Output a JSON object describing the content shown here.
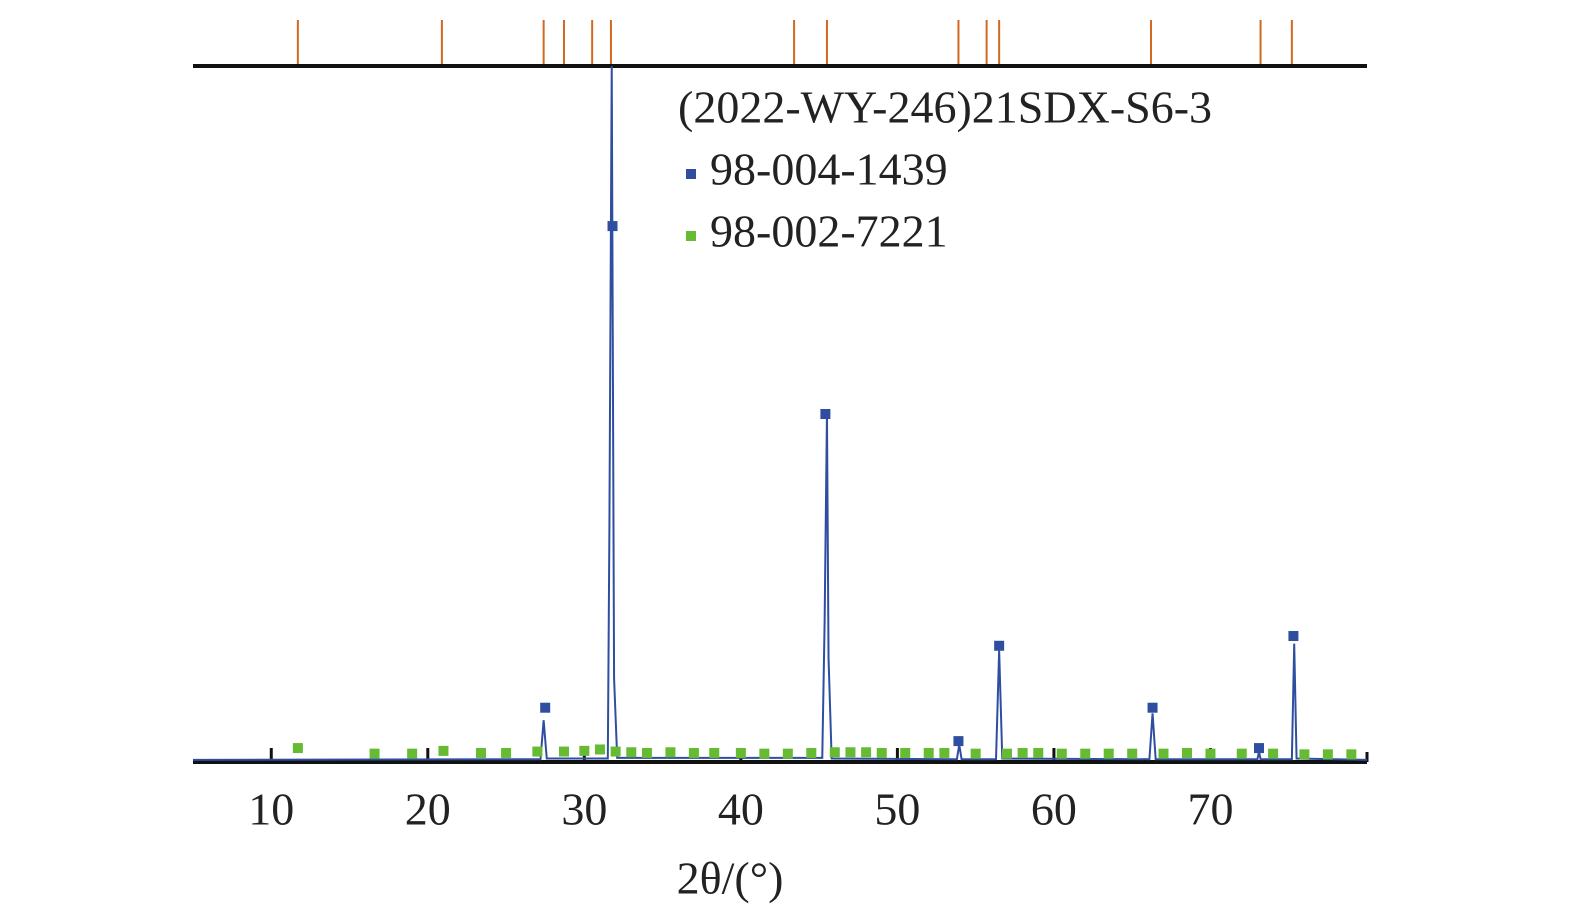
{
  "chart_data": {
    "type": "xrd",
    "x_label": "2θ/(°)",
    "xlim": [
      5,
      80
    ],
    "xticks": [
      10,
      20,
      30,
      40,
      50,
      60,
      70
    ],
    "ylim": [
      0,
      100
    ],
    "peak_markers": {
      "color": "#d2691e",
      "x": [
        11.7,
        20.9,
        27.4,
        28.7,
        30.5,
        31.7,
        43.4,
        45.5,
        53.9,
        55.7,
        56.5,
        66.2,
        73.2,
        75.2
      ]
    },
    "series": [
      {
        "name": "(2022-WY-246)21SDX-S6-3",
        "color": "#2f4ea0",
        "style": "line",
        "x": [
          5,
          27.2,
          27.4,
          27.6,
          31.5,
          31.6,
          31.75,
          31.9,
          32.1,
          45.2,
          45.35,
          45.5,
          45.6,
          45.8,
          53.8,
          53.95,
          54.1,
          56.3,
          56.5,
          56.7,
          66.1,
          66.3,
          66.5,
          73,
          73.1,
          73.2,
          75.2,
          75.35,
          75.5,
          80
        ],
        "values": [
          0.3,
          0.4,
          6,
          0.5,
          0.5,
          33,
          100,
          12,
          0.6,
          0.6,
          20,
          50,
          15,
          0.5,
          0.4,
          2.5,
          0.4,
          0.4,
          16,
          0.5,
          0.4,
          7,
          0.4,
          0.4,
          1.5,
          0.4,
          0.4,
          17,
          0.5,
          0.3
        ]
      },
      {
        "name": "98-004-1439",
        "color": "#2f4ea0",
        "style": "square",
        "x": [
          27.5,
          31.8,
          45.4,
          53.9,
          56.5,
          66.3,
          73.1,
          75.3
        ],
        "values": [
          7.8,
          77,
          50,
          3,
          16.7,
          7.8,
          2,
          18.1
        ]
      },
      {
        "name": "98-002-7221",
        "color": "#66bb33",
        "style": "square",
        "x": [
          11.7,
          16.6,
          19,
          21,
          23.4,
          25,
          27,
          28.7,
          30,
          31,
          32,
          33,
          34,
          35.5,
          37,
          38.3,
          40,
          41.5,
          43,
          44.5,
          46,
          47,
          48,
          49,
          50.5,
          52,
          53,
          55,
          57,
          58,
          59,
          60.5,
          62,
          63.5,
          65,
          67,
          68.5,
          70,
          72,
          74,
          76,
          77.5,
          79
        ],
        "values": [
          2,
          1.2,
          1.2,
          1.6,
          1.3,
          1.3,
          1.5,
          1.5,
          1.6,
          1.8,
          1.5,
          1.4,
          1.3,
          1.4,
          1.3,
          1.3,
          1.3,
          1.2,
          1.2,
          1.3,
          1.4,
          1.4,
          1.4,
          1.3,
          1.3,
          1.3,
          1.3,
          1.2,
          1.2,
          1.3,
          1.3,
          1.2,
          1.2,
          1.2,
          1.2,
          1.2,
          1.3,
          1.2,
          1.2,
          1.2,
          1.1,
          1.1,
          1.1
        ]
      }
    ]
  }
}
